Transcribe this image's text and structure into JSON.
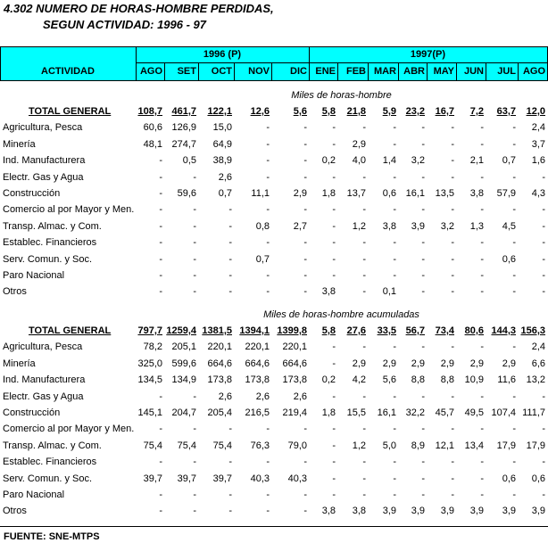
{
  "header": {
    "title": "4.302  NUMERO DE HORAS-HOMBRE PERDIDAS,",
    "subtitle": "SEGUN ACTIVIDAD: 1996 - 97"
  },
  "table": {
    "activity_label": "ACTIVIDAD",
    "years": [
      "1996 (P)",
      "1997(P)"
    ],
    "months": [
      "AGO",
      "SET",
      "OCT",
      "NOV",
      "DIC",
      "ENE",
      "FEB",
      "MAR",
      "ABR",
      "MAY",
      "JUN",
      "JUL",
      "AGO"
    ],
    "sections": [
      {
        "subtitle": "Miles de horas-hombre",
        "rows": [
          {
            "label": "TOTAL GENERAL",
            "values": [
              "108,7",
              "461,7",
              "122,1",
              "12,6",
              "5,6",
              "5,8",
              "21,8",
              "5,9",
              "23,2",
              "16,7",
              "7,2",
              "63,7",
              "12,0"
            ]
          },
          {
            "label": "Agricultura, Pesca",
            "values": [
              "60,6",
              "126,9",
              "15,0",
              "-",
              "-",
              "-",
              "-",
              "-",
              "-",
              "-",
              "-",
              "-",
              "2,4"
            ]
          },
          {
            "label": "Minería",
            "values": [
              "48,1",
              "274,7",
              "64,9",
              "-",
              "-",
              "-",
              "2,9",
              "-",
              "-",
              "-",
              "-",
              "-",
              "3,7"
            ]
          },
          {
            "label": "Ind. Manufacturera",
            "values": [
              "-",
              "0,5",
              "38,9",
              "-",
              "-",
              "0,2",
              "4,0",
              "1,4",
              "3,2",
              "-",
              "2,1",
              "0,7",
              "1,6"
            ]
          },
          {
            "label": "Electr. Gas y Agua",
            "values": [
              "-",
              "-",
              "2,6",
              "-",
              "-",
              "-",
              "-",
              "-",
              "-",
              "-",
              "-",
              "-",
              "-"
            ]
          },
          {
            "label": "Construcción",
            "values": [
              "-",
              "59,6",
              "0,7",
              "11,1",
              "2,9",
              "1,8",
              "13,7",
              "0,6",
              "16,1",
              "13,5",
              "3,8",
              "57,9",
              "4,3"
            ]
          },
          {
            "label": "Comercio al por Mayor y Men.",
            "values": [
              "-",
              "-",
              "-",
              "-",
              "-",
              "-",
              "-",
              "-",
              "-",
              "-",
              "-",
              "-",
              "-"
            ]
          },
          {
            "label": "Transp. Almac. y Com.",
            "values": [
              "-",
              "-",
              "-",
              "0,8",
              "2,7",
              "-",
              "1,2",
              "3,8",
              "3,9",
              "3,2",
              "1,3",
              "4,5",
              "-"
            ]
          },
          {
            "label": "Establec. Financieros",
            "values": [
              "-",
              "-",
              "-",
              "-",
              "-",
              "-",
              "-",
              "-",
              "-",
              "-",
              "-",
              "-",
              "-"
            ]
          },
          {
            "label": "Serv. Comun. y Soc.",
            "values": [
              "-",
              "-",
              "-",
              "0,7",
              "-",
              "-",
              "-",
              "-",
              "-",
              "-",
              "-",
              "0,6",
              "-"
            ]
          },
          {
            "label": "Paro Nacional",
            "values": [
              "-",
              "-",
              "-",
              "-",
              "-",
              "-",
              "-",
              "-",
              "-",
              "-",
              "-",
              "-",
              "-"
            ]
          },
          {
            "label": "Otros",
            "values": [
              "-",
              "-",
              "-",
              "-",
              "-",
              "3,8",
              "-",
              "0,1",
              "-",
              "-",
              "-",
              "-",
              "-"
            ]
          }
        ]
      },
      {
        "subtitle": "Miles de horas-hombre acumuladas",
        "rows": [
          {
            "label": "TOTAL GENERAL",
            "values": [
              "797,7",
              "1259,4",
              "1381,5",
              "1394,1",
              "1399,8",
              "5,8",
              "27,6",
              "33,5",
              "56,7",
              "73,4",
              "80,6",
              "144,3",
              "156,3"
            ]
          },
          {
            "label": "Agricultura, Pesca",
            "values": [
              "78,2",
              "205,1",
              "220,1",
              "220,1",
              "220,1",
              "-",
              "-",
              "-",
              "-",
              "-",
              "-",
              "-",
              "2,4"
            ]
          },
          {
            "label": "Minería",
            "values": [
              "325,0",
              "599,6",
              "664,6",
              "664,6",
              "664,6",
              "-",
              "2,9",
              "2,9",
              "2,9",
              "2,9",
              "2,9",
              "2,9",
              "6,6"
            ]
          },
          {
            "label": "Ind. Manufacturera",
            "values": [
              "134,5",
              "134,9",
              "173,8",
              "173,8",
              "173,8",
              "0,2",
              "4,2",
              "5,6",
              "8,8",
              "8,8",
              "10,9",
              "11,6",
              "13,2"
            ]
          },
          {
            "label": "Electr. Gas y Agua",
            "values": [
              "-",
              "-",
              "2,6",
              "2,6",
              "2,6",
              "-",
              "-",
              "-",
              "-",
              "-",
              "-",
              "-",
              "-"
            ]
          },
          {
            "label": "Construcción",
            "values": [
              "145,1",
              "204,7",
              "205,4",
              "216,5",
              "219,4",
              "1,8",
              "15,5",
              "16,1",
              "32,2",
              "45,7",
              "49,5",
              "107,4",
              "111,7"
            ]
          },
          {
            "label": "Comercio al por Mayor y Men.",
            "values": [
              "-",
              "-",
              "-",
              "-",
              "-",
              "-",
              "-",
              "-",
              "-",
              "-",
              "-",
              "-",
              "-"
            ]
          },
          {
            "label": "Transp. Almac. y Com.",
            "values": [
              "75,4",
              "75,4",
              "75,4",
              "76,3",
              "79,0",
              "-",
              "1,2",
              "5,0",
              "8,9",
              "12,1",
              "13,4",
              "17,9",
              "17,9"
            ]
          },
          {
            "label": "Establec. Financieros",
            "values": [
              "-",
              "-",
              "-",
              "-",
              "-",
              "-",
              "-",
              "-",
              "-",
              "-",
              "-",
              "-",
              "-"
            ]
          },
          {
            "label": "Serv. Comun. y Soc.",
            "values": [
              "39,7",
              "39,7",
              "39,7",
              "40,3",
              "40,3",
              "-",
              "-",
              "-",
              "-",
              "-",
              "-",
              "0,6",
              "0,6"
            ]
          },
          {
            "label": "Paro Nacional",
            "values": [
              "-",
              "-",
              "-",
              "-",
              "-",
              "-",
              "-",
              "-",
              "-",
              "-",
              "-",
              "-",
              "-"
            ]
          },
          {
            "label": "Otros",
            "values": [
              "-",
              "-",
              "-",
              "-",
              "-",
              "3,8",
              "3,8",
              "3,9",
              "3,9",
              "3,9",
              "3,9",
              "3,9",
              "3,9"
            ]
          }
        ]
      }
    ]
  },
  "footer": {
    "source": "FUENTE: SNE-MTPS"
  }
}
